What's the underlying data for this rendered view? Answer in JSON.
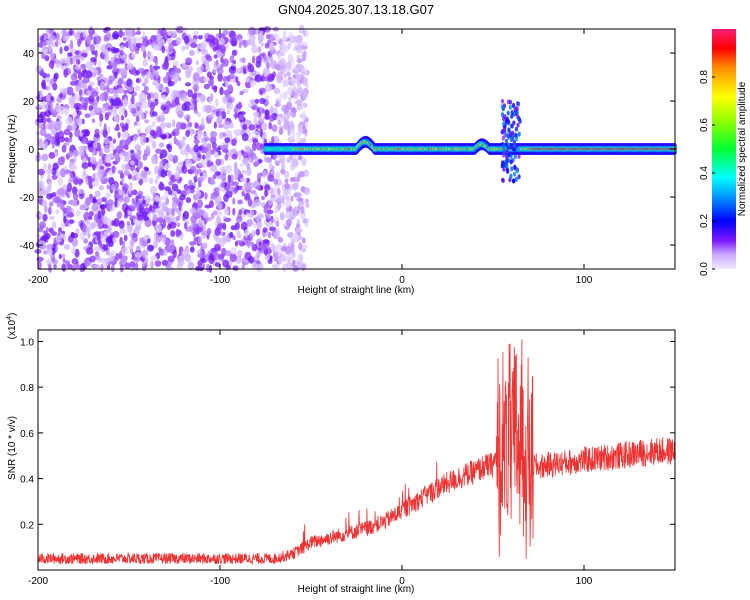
{
  "title": "GN04.2025.307.13.18.G07",
  "chart_data": [
    {
      "type": "heatmap",
      "xlabel": "Height of straight line (km)",
      "ylabel": "Frequency (Hz)",
      "xlim": [
        -200,
        150
      ],
      "ylim": [
        -50,
        50
      ],
      "x_ticks": [
        -200,
        -100,
        0,
        100
      ],
      "y_ticks": [
        40,
        20,
        0,
        -20,
        -40
      ],
      "colorbar": {
        "label": "Normalized spectral amplitude",
        "range": [
          0,
          1
        ],
        "ticks": [
          "0.0",
          "0.2",
          "0.4",
          "0.6",
          "0.8"
        ]
      },
      "features": {
        "noise_region_x": [
          -200,
          -60
        ],
        "signal_track_frequency_hz": 0,
        "signal_track_x": [
          -75,
          150
        ],
        "disturbance_x": [
          55,
          65
        ]
      }
    },
    {
      "type": "line",
      "xlabel": "Height of straight line (km)",
      "ylabel": "SNR (10 * v/v)",
      "y_multiplier": "(x10",
      "y_multiplier_exp": "4",
      "xlim": [
        -200,
        150
      ],
      "ylim": [
        0,
        1.05
      ],
      "x_ticks": [
        -200,
        -100,
        0,
        100
      ],
      "y_ticks": [
        0.2,
        0.4,
        0.6,
        0.8,
        1.0
      ],
      "y_tick_labels": [
        "0.2",
        "0.4",
        "0.6",
        "0.8",
        "1.0"
      ],
      "series": [
        {
          "color": "#ee3333",
          "x": [
            -200,
            -150,
            -100,
            -70,
            -60,
            -50,
            -40,
            -30,
            -20,
            -10,
            0,
            10,
            20,
            30,
            40,
            45,
            50,
            55,
            60,
            65,
            70,
            75,
            80,
            90,
            100,
            110,
            120,
            130,
            140,
            150
          ],
          "y": [
            0.05,
            0.05,
            0.05,
            0.05,
            0.07,
            0.12,
            0.14,
            0.16,
            0.18,
            0.21,
            0.26,
            0.31,
            0.36,
            0.4,
            0.43,
            0.45,
            0.46,
            0.55,
            0.55,
            0.6,
            0.47,
            0.45,
            0.46,
            0.47,
            0.48,
            0.49,
            0.5,
            0.51,
            0.52,
            0.52
          ]
        }
      ]
    }
  ]
}
